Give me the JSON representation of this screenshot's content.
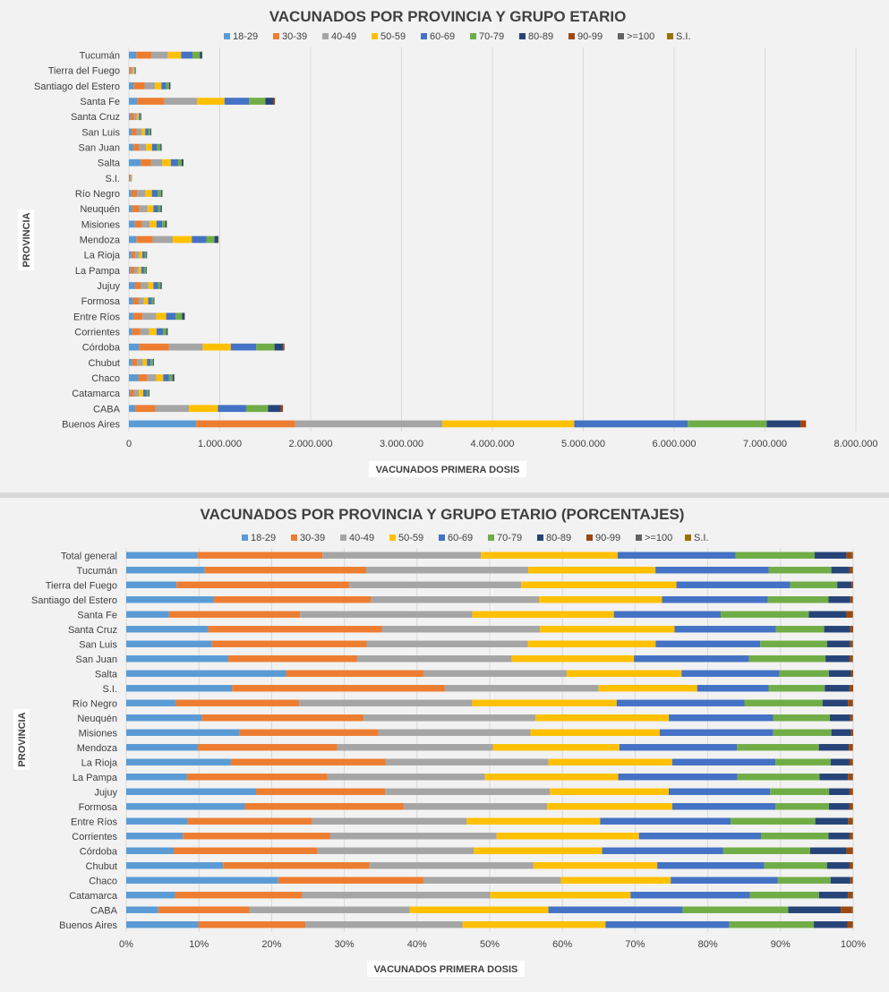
{
  "chart_data": [
    {
      "type": "bar",
      "orientation": "horizontal",
      "stacked": true,
      "title": "VACUNADOS POR PROVINCIA Y GRUPO ETARIO",
      "xlabel": "VACUNADOS PRIMERA  DOSIS",
      "ylabel": "PROVINCIA",
      "xlim": [
        0,
        8000000
      ],
      "xticks": [
        "0",
        "1.000.000",
        "2.000.000",
        "3.000.000",
        "4.000.000",
        "5.000.000",
        "6.000.000",
        "7.000.000",
        "8.000.000"
      ],
      "grid": true,
      "legend_position": "top",
      "categories": [
        "Tucumán",
        "Tierra del Fuego",
        "Santiago del Estero",
        "Santa Fe",
        "Santa Cruz",
        "San Luis",
        "San Juan",
        "Salta",
        "S.I.",
        "Río Negro",
        "Neuquén",
        "Misiones",
        "Mendoza",
        "La Rioja",
        "La Pampa",
        "Jujuy",
        "Formosa",
        "Entre Ríos",
        "Corrientes",
        "Córdoba",
        "Chubut",
        "Chaco",
        "Catamarca",
        "CABA",
        "Buenos Aires"
      ],
      "series": [
        {
          "name": "18-29",
          "color": "#5b9bd5",
          "values": [
            80000,
            6000,
            52000,
            92000,
            16000,
            30000,
            50000,
            130000,
            5000,
            28000,
            36000,
            66000,
            82000,
            28000,
            17000,
            64000,
            46000,
            50000,
            36000,
            112000,
            36000,
            104000,
            14000,
            70000,
            740000
          ]
        },
        {
          "name": "30-39",
          "color": "#ed7d31",
          "values": [
            170000,
            22000,
            120000,
            300000,
            42000,
            54000,
            66000,
            115000,
            10000,
            63000,
            80000,
            80000,
            180000,
            42000,
            42000,
            64000,
            62000,
            100000,
            90000,
            330000,
            55000,
            100000,
            40000,
            220000,
            1090000
          ]
        },
        {
          "name": "40-49",
          "color": "#a5a5a5",
          "values": [
            180000,
            18000,
            116000,
            360000,
            30000,
            58000,
            74000,
            120000,
            7000,
            90000,
            88000,
            84000,
            220000,
            44000,
            44000,
            84000,
            56000,
            150000,
            98000,
            370000,
            62000,
            96000,
            56000,
            370000,
            1620000
          ]
        },
        {
          "name": "50-59",
          "color": "#ffc000",
          "values": [
            145000,
            16000,
            70000,
            300000,
            21000,
            38000,
            65000,
            96000,
            5000,
            72000,
            66000,
            74000,
            210000,
            34000,
            34000,
            58000,
            48000,
            110000,
            80000,
            310000,
            46000,
            78000,
            48000,
            320000,
            1450000
          ]
        },
        {
          "name": "60-69",
          "color": "#4472c4",
          "values": [
            125000,
            10000,
            52000,
            270000,
            17000,
            36000,
            54000,
            80000,
            3000,
            63000,
            50000,
            62000,
            160000,
            28000,
            30000,
            50000,
            40000,
            105000,
            70000,
            280000,
            40000,
            64000,
            38000,
            310000,
            1250000
          ]
        },
        {
          "name": "70-79",
          "color": "#70ad47",
          "values": [
            80000,
            4000,
            32000,
            180000,
            8000,
            22000,
            38000,
            40000,
            2000,
            40000,
            30000,
            34000,
            90000,
            16000,
            20000,
            28000,
            20000,
            70000,
            38000,
            200000,
            25000,
            38000,
            22000,
            240000,
            870000
          ]
        },
        {
          "name": "80-89",
          "color": "#264478",
          "values": [
            25000,
            2000,
            14000,
            90000,
            4000,
            8000,
            12000,
            18000,
            1000,
            12000,
            12000,
            16000,
            40000,
            7000,
            8000,
            12000,
            8000,
            28000,
            14000,
            95000,
            10000,
            18000,
            8000,
            140000,
            370000
          ]
        },
        {
          "name": "90-99",
          "color": "#9e480e",
          "values": [
            3000,
            500,
            1500,
            15000,
            500,
            1000,
            1500,
            2000,
            200,
            2000,
            1500,
            2000,
            5000,
            1000,
            1000,
            1500,
            1000,
            3000,
            2000,
            15000,
            1000,
            2000,
            1000,
            25000,
            60000
          ]
        },
        {
          "name": ">=100",
          "color": "#636363",
          "values": [
            100,
            0,
            50,
            500,
            0,
            50,
            50,
            100,
            0,
            50,
            50,
            50,
            200,
            50,
            50,
            50,
            50,
            100,
            50,
            500,
            50,
            50,
            50,
            500,
            2000
          ]
        },
        {
          "name": "S.I.",
          "color": "#997300",
          "values": [
            100,
            0,
            50,
            200,
            0,
            50,
            50,
            100,
            0,
            50,
            50,
            50,
            100,
            50,
            50,
            50,
            50,
            100,
            50,
            300,
            50,
            50,
            50,
            300,
            1500
          ]
        }
      ]
    },
    {
      "type": "bar",
      "orientation": "horizontal",
      "stacked": true,
      "normalized": true,
      "title": "VACUNADOS POR PROVINCIA Y GRUPO ETARIO (PORCENTAJES)",
      "xlabel": "VACUNADOS PRIMERA  DOSIS",
      "ylabel": "PROVINCIA",
      "xlim": [
        0,
        100
      ],
      "xticks": [
        "0%",
        "10%",
        "20%",
        "30%",
        "40%",
        "50%",
        "60%",
        "70%",
        "80%",
        "90%",
        "100%"
      ],
      "grid": true,
      "legend_position": "top",
      "categories": [
        "Total general",
        "Tucumán",
        "Tierra del Fuego",
        "Santiago del Estero",
        "Santa Fe",
        "Santa Cruz",
        "San Luis",
        "San Juan",
        "Salta",
        "S.I.",
        "Río Negro",
        "Neuquén",
        "Misiones",
        "Mendoza",
        "La Rioja",
        "La Pampa",
        "Jujuy",
        "Formosa",
        "Entre Ríos",
        "Corrientes",
        "Córdoba",
        "Chubut",
        "Chaco",
        "Catamarca",
        "CABA",
        "Buenos Aires"
      ],
      "series": [
        {
          "name": "18-29",
          "color": "#5b9bd5",
          "values": [
            9.8,
            10.8,
            6.3,
            12.1,
            5.7,
            11.0,
            11.8,
            14.0,
            21.7,
            14.5,
            6.8,
            10.4,
            15.6,
            9.8,
            14.4,
            8.3,
            17.8,
            16.2,
            8.4,
            7.8,
            6.5,
            13.3,
            20.9,
            6.7,
            4.4,
            9.9
          ]
        },
        {
          "name": "30-39",
          "color": "#ed7d31",
          "values": [
            17.2,
            22.2,
            21.6,
            21.7,
            17.4,
            23.4,
            21.3,
            17.7,
            18.7,
            29.2,
            16.9,
            22.2,
            19.1,
            19.1,
            21.3,
            19.2,
            17.7,
            21.7,
            17.1,
            20.3,
            19.7,
            20.1,
            20.0,
            17.5,
            12.5,
            14.7
          ]
        },
        {
          "name": "40-49",
          "color": "#a5a5a5",
          "values": [
            21.8,
            22.3,
            21.5,
            23.2,
            22.9,
            21.2,
            22.2,
            21.2,
            19.4,
            21.1,
            23.7,
            23.6,
            20.9,
            21.3,
            22.4,
            21.5,
            22.6,
            19.6,
            21.2,
            22.9,
            21.4,
            22.5,
            18.9,
            25.8,
            22.0,
            21.6
          ]
        },
        {
          "name": "50-59",
          "color": "#ffc000",
          "values": [
            18.8,
            17.5,
            19.4,
            17.0,
            18.8,
            18.1,
            17.6,
            16.8,
            15.6,
            13.5,
            19.8,
            18.3,
            17.8,
            17.3,
            17.0,
            18.2,
            16.3,
            17.1,
            18.3,
            19.6,
            17.6,
            17.0,
            15.1,
            19.3,
            19.0,
            19.6
          ]
        },
        {
          "name": "60-69",
          "color": "#4472c4",
          "values": [
            16.2,
            15.6,
            14.2,
            14.6,
            14.2,
            13.6,
            14.4,
            15.8,
            13.3,
            9.8,
            17.5,
            14.3,
            15.6,
            16.1,
            14.2,
            16.3,
            13.9,
            14.1,
            17.9,
            16.8,
            16.6,
            14.7,
            14.7,
            16.4,
            18.4,
            17.0
          ]
        },
        {
          "name": "70-79",
          "color": "#70ad47",
          "values": [
            10.9,
            8.6,
            5.9,
            8.4,
            11.7,
            6.5,
            9.2,
            10.5,
            6.7,
            7.7,
            10.7,
            7.8,
            8.0,
            11.2,
            7.6,
            11.2,
            8.1,
            7.3,
            11.6,
            9.3,
            11.9,
            8.6,
            7.3,
            9.5,
            14.5,
            11.6
          ]
        },
        {
          "name": "80-89",
          "color": "#264478",
          "values": [
            4.4,
            2.5,
            1.8,
            3.0,
            5.0,
            3.5,
            3.2,
            3.3,
            3.0,
            3.4,
            3.5,
            2.8,
            2.7,
            4.1,
            2.6,
            3.9,
            2.8,
            2.8,
            4.5,
            2.9,
            5.0,
            3.1,
            2.7,
            4.0,
            7.2,
            4.6
          ]
        },
        {
          "name": "90-99",
          "color": "#9e480e",
          "values": [
            0.7,
            0.4,
            0.2,
            0.3,
            0.8,
            0.4,
            0.3,
            0.4,
            0.3,
            0.5,
            0.6,
            0.3,
            0.3,
            0.5,
            0.4,
            0.6,
            0.4,
            0.4,
            0.6,
            0.4,
            0.8,
            0.4,
            0.3,
            0.6,
            1.5,
            0.7
          ]
        },
        {
          "name": ">=100",
          "color": "#636363",
          "values": [
            0.1,
            0.05,
            0,
            0.05,
            0.05,
            0,
            0.05,
            0.05,
            0,
            0,
            0.05,
            0.05,
            0,
            0.05,
            0.05,
            0.05,
            0.05,
            0.05,
            0.05,
            0.05,
            0.05,
            0.05,
            0.05,
            0.05,
            0.1,
            0.05
          ]
        },
        {
          "name": "S.I.",
          "color": "#997300",
          "values": [
            0.1,
            0.05,
            0,
            0.05,
            0.05,
            0,
            0.05,
            0.05,
            0,
            0,
            0.05,
            0.05,
            0,
            0.05,
            0.05,
            0.05,
            0.05,
            0.05,
            0.05,
            0.05,
            0.05,
            0.05,
            0.05,
            0.05,
            0.1,
            0.05
          ]
        }
      ]
    }
  ]
}
